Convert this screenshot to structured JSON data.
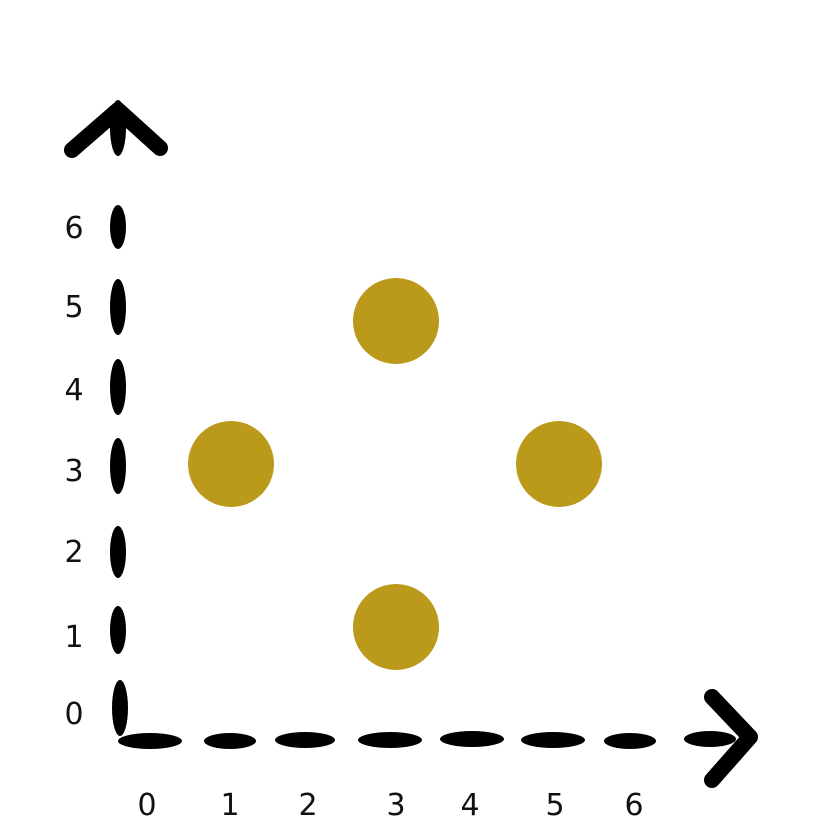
{
  "chart_data": {
    "type": "scatter",
    "title": "",
    "xlabel": "",
    "ylabel": "",
    "xlim": [
      0,
      6
    ],
    "ylim": [
      0,
      6
    ],
    "x_ticks": [
      "0",
      "1",
      "2",
      "3",
      "4",
      "5",
      "6"
    ],
    "y_ticks": [
      "0",
      "1",
      "2",
      "3",
      "4",
      "5",
      "6"
    ],
    "grid": false,
    "axes_style": "hand-drawn dashed black axes with arrowheads",
    "marker_color": "#BA991B",
    "series": [
      {
        "points": [
          {
            "x": 1,
            "y": 3
          },
          {
            "x": 3,
            "y": 5
          },
          {
            "x": 5,
            "y": 3
          },
          {
            "x": 3,
            "y": 1
          }
        ]
      }
    ]
  }
}
